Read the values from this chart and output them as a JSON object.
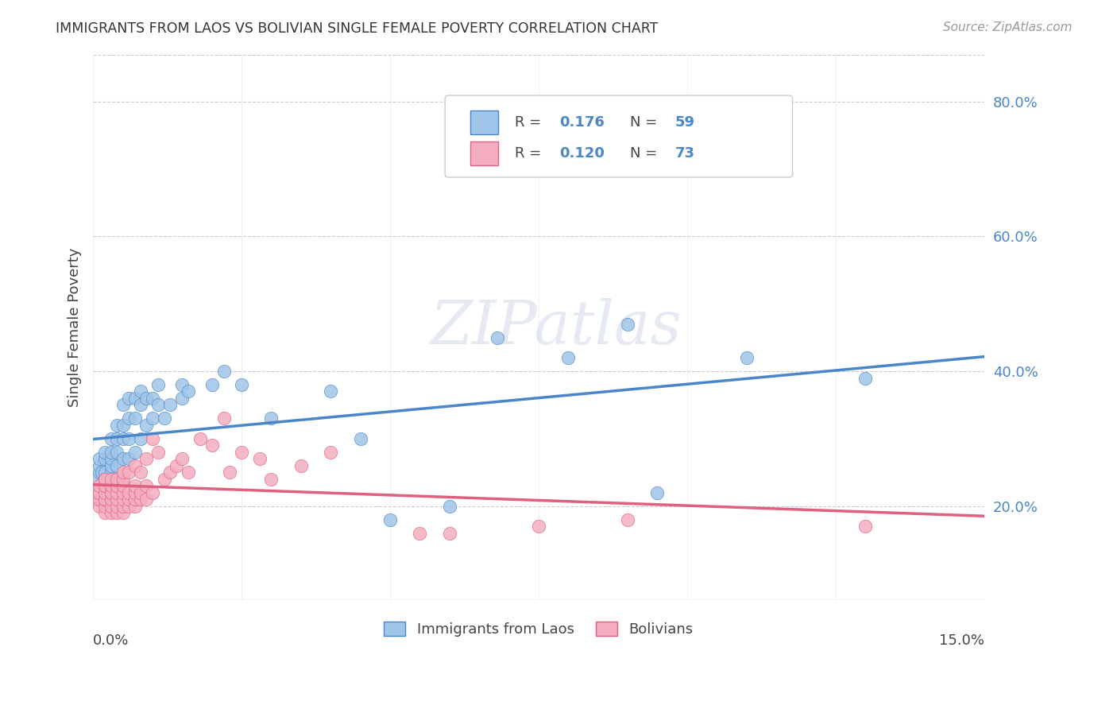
{
  "title": "IMMIGRANTS FROM LAOS VS BOLIVIAN SINGLE FEMALE POVERTY CORRELATION CHART",
  "source": "Source: ZipAtlas.com",
  "ylabel": "Single Female Poverty",
  "x_range": [
    0.0,
    0.15
  ],
  "y_range": [
    0.06,
    0.87
  ],
  "y_ticks": [
    0.2,
    0.4,
    0.6,
    0.8
  ],
  "y_tick_labels": [
    "20.0%",
    "40.0%",
    "60.0%",
    "80.0%"
  ],
  "legend_r_laos": "0.176",
  "legend_n_laos": "59",
  "legend_r_bolivians": "0.120",
  "legend_n_bolivians": "73",
  "color_laos_fill": "#9FC5E8",
  "color_bolivians_fill": "#F4AEBF",
  "color_laos_line": "#4A86C8",
  "color_bolivians_line": "#E06080",
  "watermark": "ZIPatlas",
  "laos_x": [
    0.0005,
    0.001,
    0.001,
    0.001,
    0.0015,
    0.002,
    0.002,
    0.002,
    0.002,
    0.003,
    0.003,
    0.003,
    0.003,
    0.003,
    0.003,
    0.004,
    0.004,
    0.004,
    0.004,
    0.004,
    0.005,
    0.005,
    0.005,
    0.005,
    0.006,
    0.006,
    0.006,
    0.006,
    0.007,
    0.007,
    0.007,
    0.008,
    0.008,
    0.008,
    0.009,
    0.009,
    0.01,
    0.01,
    0.011,
    0.011,
    0.012,
    0.013,
    0.015,
    0.015,
    0.016,
    0.02,
    0.022,
    0.025,
    0.03,
    0.04,
    0.045,
    0.05,
    0.06,
    0.068,
    0.08,
    0.09,
    0.095,
    0.11,
    0.13
  ],
  "laos_y": [
    0.24,
    0.25,
    0.26,
    0.27,
    0.25,
    0.24,
    0.25,
    0.27,
    0.28,
    0.23,
    0.25,
    0.26,
    0.27,
    0.28,
    0.3,
    0.23,
    0.26,
    0.28,
    0.3,
    0.32,
    0.27,
    0.3,
    0.32,
    0.35,
    0.27,
    0.3,
    0.33,
    0.36,
    0.28,
    0.33,
    0.36,
    0.3,
    0.35,
    0.37,
    0.32,
    0.36,
    0.33,
    0.36,
    0.35,
    0.38,
    0.33,
    0.35,
    0.36,
    0.38,
    0.37,
    0.38,
    0.4,
    0.38,
    0.33,
    0.37,
    0.3,
    0.18,
    0.2,
    0.45,
    0.42,
    0.47,
    0.22,
    0.42,
    0.39
  ],
  "bolivians_x": [
    0.0002,
    0.0005,
    0.001,
    0.001,
    0.001,
    0.001,
    0.001,
    0.002,
    0.002,
    0.002,
    0.002,
    0.002,
    0.002,
    0.002,
    0.002,
    0.002,
    0.003,
    0.003,
    0.003,
    0.003,
    0.003,
    0.003,
    0.003,
    0.004,
    0.004,
    0.004,
    0.004,
    0.004,
    0.004,
    0.005,
    0.005,
    0.005,
    0.005,
    0.005,
    0.005,
    0.005,
    0.006,
    0.006,
    0.006,
    0.006,
    0.007,
    0.007,
    0.007,
    0.007,
    0.007,
    0.008,
    0.008,
    0.008,
    0.009,
    0.009,
    0.009,
    0.01,
    0.01,
    0.011,
    0.012,
    0.013,
    0.014,
    0.015,
    0.016,
    0.018,
    0.02,
    0.022,
    0.023,
    0.025,
    0.028,
    0.03,
    0.035,
    0.04,
    0.055,
    0.06,
    0.075,
    0.09,
    0.13
  ],
  "bolivians_y": [
    0.21,
    0.22,
    0.2,
    0.21,
    0.22,
    0.22,
    0.23,
    0.19,
    0.2,
    0.21,
    0.21,
    0.22,
    0.23,
    0.23,
    0.24,
    0.24,
    0.19,
    0.2,
    0.21,
    0.22,
    0.22,
    0.23,
    0.24,
    0.19,
    0.2,
    0.21,
    0.22,
    0.23,
    0.24,
    0.19,
    0.2,
    0.21,
    0.22,
    0.23,
    0.24,
    0.25,
    0.2,
    0.21,
    0.22,
    0.25,
    0.2,
    0.21,
    0.22,
    0.23,
    0.26,
    0.21,
    0.22,
    0.25,
    0.21,
    0.23,
    0.27,
    0.22,
    0.3,
    0.28,
    0.24,
    0.25,
    0.26,
    0.27,
    0.25,
    0.3,
    0.29,
    0.33,
    0.25,
    0.28,
    0.27,
    0.24,
    0.26,
    0.28,
    0.16,
    0.16,
    0.17,
    0.18,
    0.17
  ]
}
